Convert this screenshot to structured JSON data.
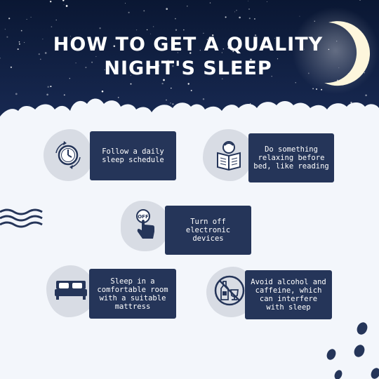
{
  "title": {
    "line1": "HOW TO GET A QUALITY",
    "line2": "NIGHT'S SLEEP"
  },
  "tips": [
    {
      "text": "Follow a daily sleep schedule",
      "icon": "clock-icon"
    },
    {
      "text": "Do something relaxing before bed, like reading",
      "icon": "reading-book-icon"
    },
    {
      "text": "Turn off electronic devices",
      "icon": "power-off-button-icon"
    },
    {
      "text": "Sleep in a comfortable room with a suitable mattress",
      "icon": "bed-icon"
    },
    {
      "text": "Avoid alcohol and caffeine, which can interfere with sleep",
      "icon": "no-alcohol-icon"
    }
  ],
  "colors": {
    "night_sky": "#0d1b3e",
    "card": "#253559",
    "background": "#f3f6fb",
    "icon_blob": "#d8dce4",
    "moon": "#fdf6dc"
  }
}
